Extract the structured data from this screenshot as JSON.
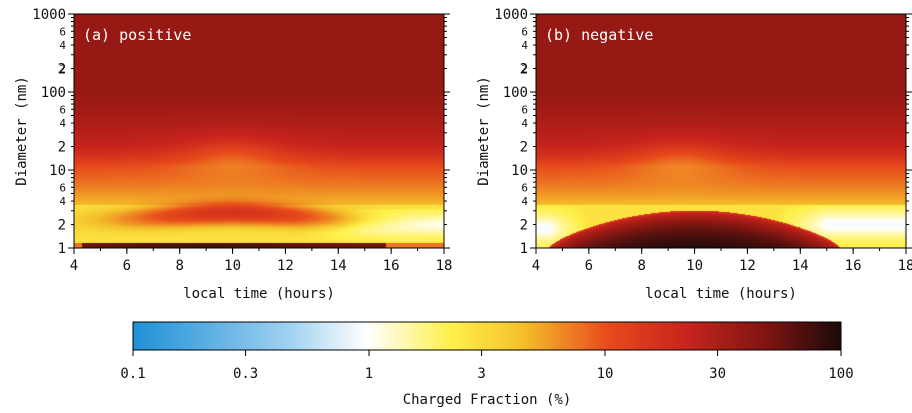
{
  "chart_data": [
    {
      "type": "heatmap",
      "panel_label": "(a) positive",
      "xlabel": "local time (hours)",
      "ylabel": "Diameter (nm)",
      "xlim": [
        4,
        18
      ],
      "ylim": [
        1,
        1000
      ],
      "yscale": "log",
      "x_ticks": [
        4,
        6,
        8,
        10,
        12,
        14,
        16,
        18
      ],
      "y_ticks": [
        1,
        2,
        10,
        100,
        1000
      ],
      "y_tick_labels": [
        "1",
        "2",
        "10",
        "100",
        "1000"
      ],
      "y_minor_labeled": [
        2,
        4,
        6,
        20,
        40,
        60,
        200,
        400,
        600
      ],
      "colorscale": "Charged Fraction (%)",
      "features": {
        "background_top_pct": 40,
        "mid_band_center_nm": 25,
        "yellow_band_nm": [
          4,
          12
        ],
        "bottom_band_nm": [
          1,
          1.15
        ],
        "growth_curve": [
          [
            6.5,
            3
          ],
          [
            8,
            5
          ],
          [
            9.3,
            15
          ],
          [
            10,
            18
          ]
        ],
        "low_region_right_pct": 1
      }
    },
    {
      "type": "heatmap",
      "panel_label": "(b) negative",
      "xlabel": "local time (hours)",
      "ylabel": "Diameter (nm)",
      "xlim": [
        4,
        18
      ],
      "ylim": [
        1,
        1000
      ],
      "yscale": "log",
      "x_ticks": [
        4,
        6,
        8,
        10,
        12,
        14,
        16,
        18
      ],
      "y_ticks": [
        1,
        2,
        10,
        100,
        1000
      ],
      "y_tick_labels": [
        "1",
        "2",
        "10",
        "100",
        "1000"
      ],
      "colorscale": "Charged Fraction (%)",
      "features": {
        "background_top_pct": 40,
        "mid_band_center_nm": 25,
        "yellow_band_nm": [
          4,
          12
        ],
        "dome_peak_nm": 3,
        "dome_time": [
          4.5,
          15.5
        ],
        "growth_curve": [
          [
            7.5,
            5
          ],
          [
            9,
            10
          ],
          [
            10,
            18
          ]
        ],
        "low_region_right_pct": 0.8
      }
    }
  ],
  "colorbar": {
    "label": "Charged Fraction (%)",
    "ticks": [
      0.1,
      0.3,
      1,
      3,
      10,
      30,
      100
    ],
    "tick_labels": [
      "0.1",
      "0.3",
      "1",
      "3",
      "10",
      "30",
      "100"
    ],
    "scale": "log",
    "stops": [
      "#1e90d6",
      "#9fd1f0",
      "#ffffff",
      "#fff04a",
      "#f4c02a",
      "#e84b1c",
      "#c8241c",
      "#7b1410",
      "#1a0a08"
    ]
  }
}
